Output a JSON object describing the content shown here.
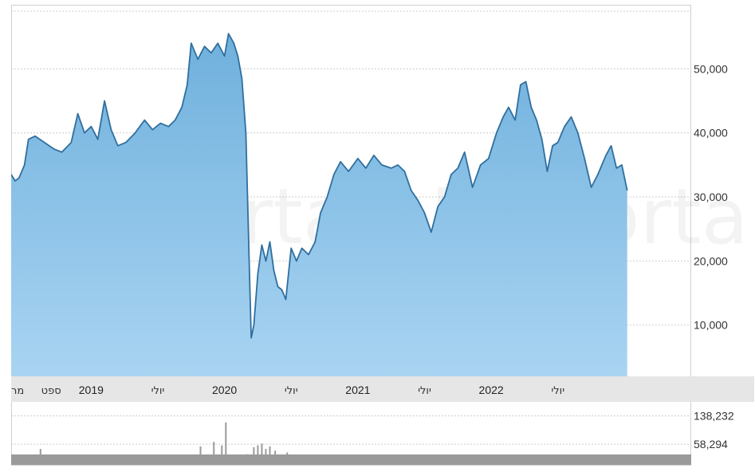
{
  "chart_data": {
    "type": "area",
    "title": "",
    "xlabel": "",
    "ylabel": "",
    "watermark": "Bizportal",
    "colors": {
      "line": "#2f6f9f",
      "fill_top": "#6fb0dc",
      "fill_bottom": "#a9d4f2",
      "volume": "#9a9a9a",
      "axis_band": "#e6e6e6",
      "grid": "#cccccc"
    },
    "price": {
      "ylim": [
        2000,
        60000
      ],
      "yticks": [
        10000,
        20000,
        30000,
        40000,
        50000
      ],
      "ytick_labels": [
        "10,000",
        "20,000",
        "30,000",
        "40,000",
        "50,000"
      ],
      "xlim": [
        2018.4,
        2023.5
      ],
      "points": [
        [
          2018.4,
          33500
        ],
        [
          2018.43,
          32500
        ],
        [
          2018.46,
          33000
        ],
        [
          2018.5,
          35000
        ],
        [
          2018.53,
          39000
        ],
        [
          2018.58,
          39500
        ],
        [
          2018.65,
          38500
        ],
        [
          2018.72,
          37500
        ],
        [
          2018.78,
          37000
        ],
        [
          2018.85,
          38500
        ],
        [
          2018.9,
          43000
        ],
        [
          2018.95,
          40000
        ],
        [
          2019.0,
          41000
        ],
        [
          2019.05,
          39000
        ],
        [
          2019.1,
          45000
        ],
        [
          2019.15,
          40500
        ],
        [
          2019.2,
          38000
        ],
        [
          2019.26,
          38500
        ],
        [
          2019.33,
          40000
        ],
        [
          2019.4,
          42000
        ],
        [
          2019.46,
          40500
        ],
        [
          2019.52,
          41500
        ],
        [
          2019.58,
          41000
        ],
        [
          2019.63,
          42000
        ],
        [
          2019.68,
          44000
        ],
        [
          2019.72,
          47500
        ],
        [
          2019.75,
          54000
        ],
        [
          2019.8,
          51500
        ],
        [
          2019.85,
          53500
        ],
        [
          2019.9,
          52500
        ],
        [
          2019.95,
          54000
        ],
        [
          2020.0,
          52000
        ],
        [
          2020.03,
          55500
        ],
        [
          2020.07,
          54000
        ],
        [
          2020.1,
          52000
        ],
        [
          2020.13,
          48500
        ],
        [
          2020.16,
          40000
        ],
        [
          2020.18,
          24000
        ],
        [
          2020.2,
          8000
        ],
        [
          2020.22,
          10000
        ],
        [
          2020.25,
          18000
        ],
        [
          2020.28,
          22500
        ],
        [
          2020.31,
          20000
        ],
        [
          2020.34,
          23000
        ],
        [
          2020.37,
          18500
        ],
        [
          2020.4,
          16000
        ],
        [
          2020.43,
          15500
        ],
        [
          2020.46,
          14000
        ],
        [
          2020.5,
          22000
        ],
        [
          2020.54,
          20000
        ],
        [
          2020.58,
          22000
        ],
        [
          2020.63,
          21000
        ],
        [
          2020.68,
          23000
        ],
        [
          2020.72,
          27500
        ],
        [
          2020.77,
          30000
        ],
        [
          2020.82,
          33500
        ],
        [
          2020.87,
          35500
        ],
        [
          2020.93,
          34000
        ],
        [
          2021.0,
          36000
        ],
        [
          2021.06,
          34500
        ],
        [
          2021.12,
          36500
        ],
        [
          2021.18,
          35000
        ],
        [
          2021.25,
          34500
        ],
        [
          2021.3,
          35000
        ],
        [
          2021.35,
          34000
        ],
        [
          2021.4,
          31000
        ],
        [
          2021.45,
          29500
        ],
        [
          2021.5,
          27500
        ],
        [
          2021.55,
          24500
        ],
        [
          2021.6,
          28500
        ],
        [
          2021.65,
          30000
        ],
        [
          2021.7,
          33500
        ],
        [
          2021.75,
          34500
        ],
        [
          2021.8,
          37000
        ],
        [
          2021.86,
          31500
        ],
        [
          2021.92,
          35000
        ],
        [
          2021.98,
          36000
        ],
        [
          2022.04,
          40000
        ],
        [
          2022.09,
          42500
        ],
        [
          2022.13,
          44000
        ],
        [
          2022.18,
          42000
        ],
        [
          2022.22,
          47500
        ],
        [
          2022.26,
          48000
        ],
        [
          2022.3,
          44000
        ],
        [
          2022.34,
          42000
        ],
        [
          2022.38,
          39000
        ],
        [
          2022.42,
          34000
        ],
        [
          2022.46,
          38000
        ],
        [
          2022.5,
          38500
        ],
        [
          2022.55,
          41000
        ],
        [
          2022.6,
          42500
        ],
        [
          2022.65,
          40000
        ],
        [
          2022.7,
          36000
        ],
        [
          2022.75,
          31500
        ],
        [
          2022.8,
          33500
        ],
        [
          2022.86,
          36500
        ],
        [
          2022.9,
          38000
        ],
        [
          2022.94,
          34500
        ],
        [
          2022.98,
          35000
        ],
        [
          2023.02,
          31000
        ]
      ]
    },
    "volume": {
      "ylim": [
        0,
        160000
      ],
      "yticks": [
        58294,
        138232
      ],
      "ytick_labels": [
        "58,294",
        "138,232"
      ],
      "spikes": [
        [
          2018.62,
          45000
        ],
        [
          2018.95,
          15000
        ],
        [
          2019.03,
          14000
        ],
        [
          2019.14,
          12000
        ],
        [
          2019.32,
          22000
        ],
        [
          2019.52,
          24000
        ],
        [
          2019.58,
          19000
        ],
        [
          2019.82,
          52000
        ],
        [
          2019.92,
          65000
        ],
        [
          2019.98,
          55000
        ],
        [
          2020.01,
          120000
        ],
        [
          2020.06,
          18000
        ],
        [
          2020.17,
          30000
        ],
        [
          2020.22,
          50000
        ],
        [
          2020.25,
          55000
        ],
        [
          2020.28,
          60000
        ],
        [
          2020.31,
          45000
        ],
        [
          2020.34,
          52000
        ],
        [
          2020.38,
          40000
        ],
        [
          2020.47,
          35000
        ],
        [
          2020.56,
          20000
        ],
        [
          2020.7,
          15000
        ],
        [
          2020.92,
          14000
        ],
        [
          2021.12,
          12000
        ],
        [
          2021.33,
          18000
        ],
        [
          2021.53,
          16000
        ],
        [
          2021.74,
          15000
        ],
        [
          2021.88,
          13000
        ],
        [
          2022.05,
          16000
        ],
        [
          2022.18,
          22000
        ],
        [
          2022.25,
          19000
        ],
        [
          2022.44,
          14000
        ],
        [
          2022.61,
          12000
        ],
        [
          2022.83,
          15000
        ],
        [
          2022.98,
          10000
        ]
      ]
    },
    "x_axis": {
      "labels": [
        {
          "x": 2018.4,
          "text": "מר"
        },
        {
          "x": 2018.7,
          "text": "ספט"
        },
        {
          "x": 2019.0,
          "text": "2019"
        },
        {
          "x": 2019.5,
          "text": "יולי"
        },
        {
          "x": 2020.0,
          "text": "2020"
        },
        {
          "x": 2020.5,
          "text": "יולי"
        },
        {
          "x": 2021.0,
          "text": "2021"
        },
        {
          "x": 2021.5,
          "text": "יולי"
        },
        {
          "x": 2022.0,
          "text": "2022"
        },
        {
          "x": 2022.5,
          "text": "יולי"
        }
      ]
    },
    "grid": true,
    "legend": "none"
  }
}
